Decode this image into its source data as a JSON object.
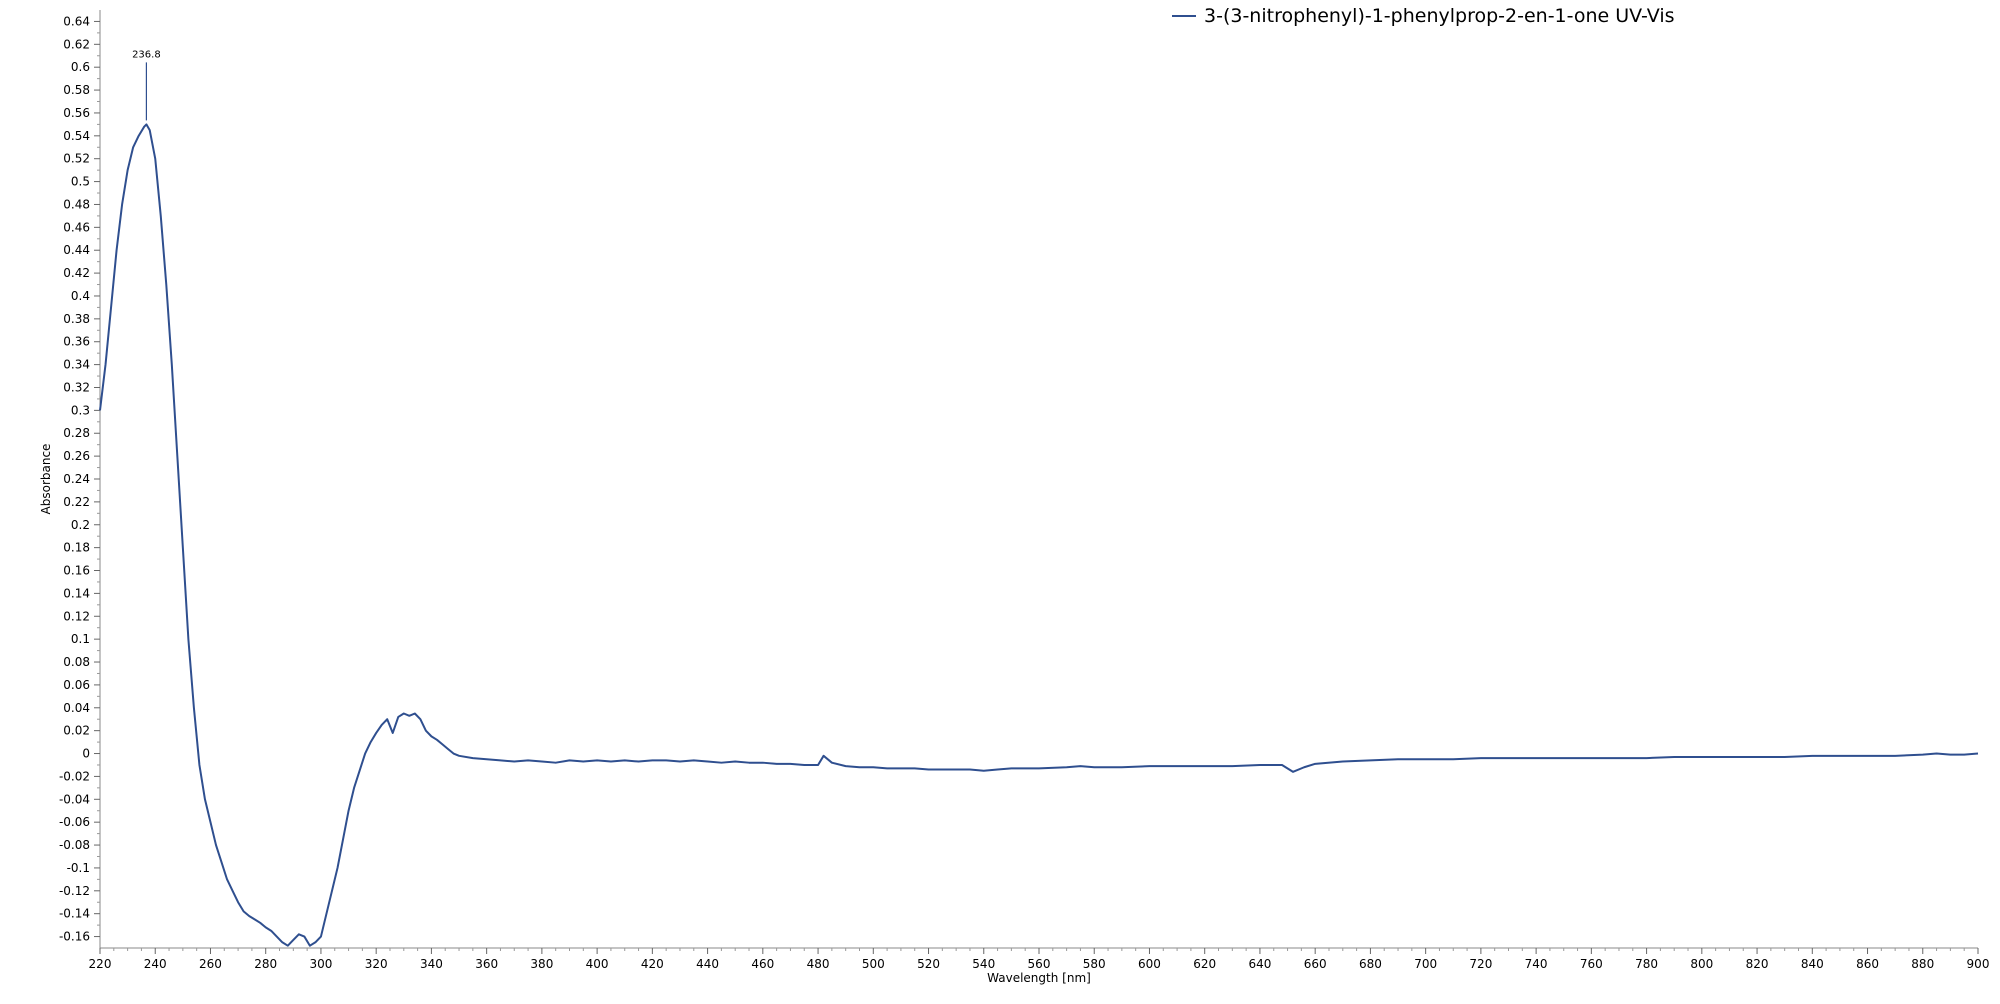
{
  "chart_data": {
    "type": "line",
    "xlabel": "Wavelength [nm]",
    "ylabel": "Absorbance",
    "xlim": [
      220,
      900
    ],
    "ylim": [
      -0.17,
      0.65
    ],
    "x_ticks": [
      220,
      240,
      260,
      280,
      300,
      320,
      340,
      360,
      380,
      400,
      420,
      440,
      460,
      480,
      500,
      520,
      540,
      560,
      580,
      600,
      620,
      640,
      660,
      680,
      700,
      720,
      740,
      760,
      780,
      800,
      820,
      840,
      860,
      880,
      900
    ],
    "y_ticks": [
      -0.16,
      -0.14,
      -0.12,
      -0.1,
      -0.08,
      -0.06,
      -0.04,
      -0.02,
      0,
      0.02,
      0.04,
      0.06,
      0.08,
      0.1,
      0.12,
      0.14,
      0.16,
      0.18,
      0.2,
      0.22,
      0.24,
      0.26,
      0.28,
      0.3,
      0.32,
      0.34,
      0.36,
      0.38,
      0.4,
      0.42,
      0.44,
      0.46,
      0.48,
      0.5,
      0.52,
      0.54,
      0.56,
      0.58,
      0.6,
      0.62,
      0.64
    ],
    "grid": false,
    "legend_position": "top-right",
    "line_color": "#2f4f8f",
    "series": [
      {
        "name": "3-(3-nitrophenyl)-1-phenylprop-2-en-1-one UV-Vis",
        "x": [
          220,
          222,
          224,
          226,
          228,
          230,
          232,
          234,
          236,
          236.8,
          238,
          240,
          242,
          244,
          246,
          248,
          250,
          252,
          254,
          256,
          258,
          260,
          262,
          264,
          266,
          268,
          270,
          272,
          274,
          276,
          278,
          280,
          282,
          284,
          286,
          288,
          290,
          292,
          294,
          296,
          298,
          300,
          302,
          304,
          306,
          308,
          310,
          312,
          314,
          316,
          318,
          320,
          322,
          324,
          326,
          328,
          330,
          332,
          334,
          336,
          338,
          340,
          342,
          344,
          346,
          348,
          350,
          355,
          360,
          365,
          370,
          375,
          380,
          385,
          390,
          395,
          400,
          405,
          410,
          415,
          420,
          425,
          430,
          435,
          440,
          445,
          450,
          455,
          460,
          465,
          470,
          475,
          480,
          482,
          485,
          490,
          495,
          500,
          505,
          510,
          515,
          520,
          525,
          530,
          535,
          540,
          545,
          550,
          560,
          570,
          575,
          580,
          590,
          600,
          610,
          620,
          630,
          640,
          648,
          652,
          656,
          660,
          670,
          680,
          690,
          700,
          710,
          720,
          730,
          740,
          750,
          760,
          770,
          780,
          790,
          800,
          810,
          820,
          830,
          840,
          850,
          860,
          870,
          880,
          885,
          890,
          895,
          900
        ],
        "y": [
          0.3,
          0.34,
          0.39,
          0.44,
          0.48,
          0.51,
          0.53,
          0.54,
          0.548,
          0.55,
          0.545,
          0.52,
          0.47,
          0.41,
          0.34,
          0.26,
          0.18,
          0.1,
          0.04,
          -0.01,
          -0.04,
          -0.06,
          -0.08,
          -0.095,
          -0.11,
          -0.12,
          -0.13,
          -0.138,
          -0.142,
          -0.145,
          -0.148,
          -0.152,
          -0.155,
          -0.16,
          -0.165,
          -0.168,
          -0.163,
          -0.158,
          -0.16,
          -0.168,
          -0.165,
          -0.16,
          -0.14,
          -0.12,
          -0.1,
          -0.075,
          -0.05,
          -0.03,
          -0.015,
          0.0,
          0.01,
          0.018,
          0.025,
          0.03,
          0.018,
          0.032,
          0.035,
          0.033,
          0.035,
          0.03,
          0.02,
          0.015,
          0.012,
          0.008,
          0.004,
          0.0,
          -0.002,
          -0.004,
          -0.005,
          -0.006,
          -0.007,
          -0.006,
          -0.007,
          -0.008,
          -0.006,
          -0.007,
          -0.006,
          -0.007,
          -0.006,
          -0.007,
          -0.006,
          -0.006,
          -0.007,
          -0.006,
          -0.007,
          -0.008,
          -0.007,
          -0.008,
          -0.008,
          -0.009,
          -0.009,
          -0.01,
          -0.01,
          -0.002,
          -0.008,
          -0.011,
          -0.012,
          -0.012,
          -0.013,
          -0.013,
          -0.013,
          -0.014,
          -0.014,
          -0.014,
          -0.014,
          -0.015,
          -0.014,
          -0.013,
          -0.013,
          -0.012,
          -0.011,
          -0.012,
          -0.012,
          -0.011,
          -0.011,
          -0.011,
          -0.011,
          -0.01,
          -0.01,
          -0.016,
          -0.012,
          -0.009,
          -0.007,
          -0.006,
          -0.005,
          -0.005,
          -0.005,
          -0.004,
          -0.004,
          -0.004,
          -0.004,
          -0.004,
          -0.004,
          -0.004,
          -0.003,
          -0.003,
          -0.003,
          -0.003,
          -0.003,
          -0.002,
          -0.002,
          -0.002,
          -0.002,
          -0.001,
          0.0,
          -0.001,
          -0.001,
          0.0
        ]
      }
    ],
    "annotations": [
      {
        "x": 236.8,
        "y": 0.55,
        "text": "236.8"
      }
    ]
  }
}
